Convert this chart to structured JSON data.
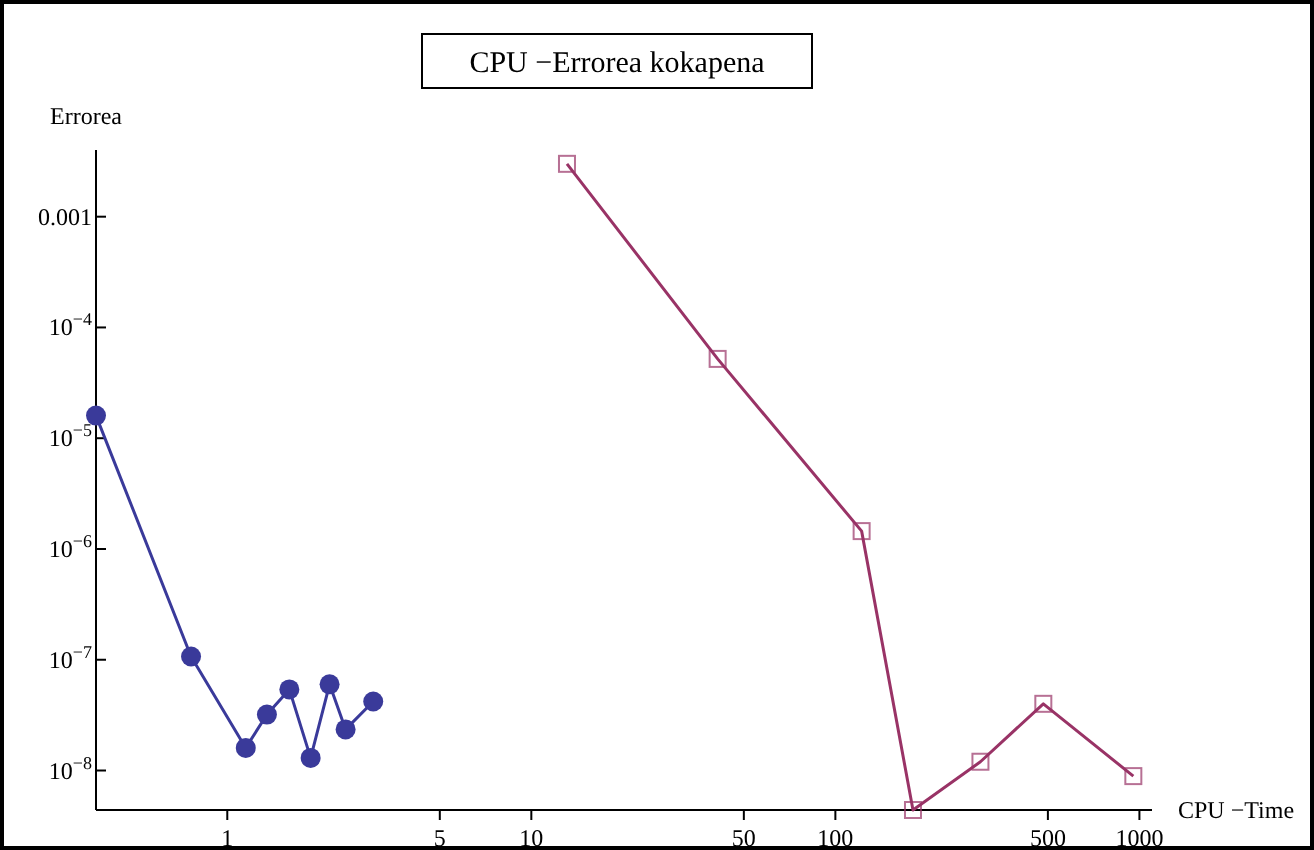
{
  "chart_data": {
    "type": "line",
    "title": "CPU −Errorea kokapena",
    "xlabel": "CPU −Time",
    "ylabel": "Errorea",
    "log": "xy",
    "grid": false,
    "xlim": [
      0.37,
      1100
    ],
    "xticks": [
      1,
      5,
      10,
      50,
      100,
      500,
      1000
    ],
    "ylim": [
      4.4e-09,
      0.004
    ],
    "yticks": [
      {
        "value": 0.001,
        "label": "0.001"
      },
      {
        "value": 0.0001,
        "label": "10$^{−4}$"
      },
      {
        "value": 1e-05,
        "label": "10$^{−5}$"
      },
      {
        "value": 1e-06,
        "label": "10$^{−6}$"
      },
      {
        "value": 1e-07,
        "label": "10$^{−7}$"
      },
      {
        "value": 1e-08,
        "label": "10$^{−8}$"
      }
    ],
    "series": [
      {
        "color": "#3a3a9a",
        "marker": "circle",
        "x": [
          0.37,
          0.76,
          1.15,
          1.35,
          1.6,
          1.88,
          2.17,
          2.45,
          3.02
        ],
        "values": [
          1.6e-05,
          1.07e-07,
          1.6e-08,
          3.2e-08,
          5.4e-08,
          1.3e-08,
          6e-08,
          2.35e-08,
          4.2e-08
        ]
      },
      {
        "color": "#993366",
        "marker": "square",
        "x": [
          13.1,
          41,
          122,
          180,
          300,
          483,
          955
        ],
        "values": [
          0.003,
          5.2e-05,
          1.45e-06,
          4.4e-09,
          1.2e-08,
          4e-08,
          8.9e-09
        ]
      }
    ]
  }
}
